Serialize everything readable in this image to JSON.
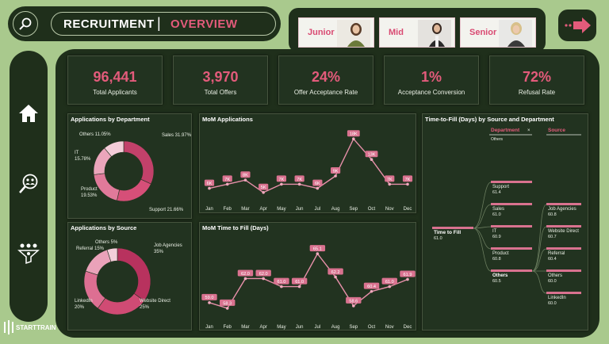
{
  "header": {
    "title": "RECRUITMENT",
    "separator": "|",
    "subtitle": "OVERVIEW"
  },
  "levels": [
    {
      "label": "Junior"
    },
    {
      "label": "Mid"
    },
    {
      "label": "Senior"
    }
  ],
  "brand": {
    "name": "STARTTRAIN"
  },
  "kpis": [
    {
      "value": "96,441",
      "label": "Total Applicants"
    },
    {
      "value": "3,970",
      "label": "Total Offers"
    },
    {
      "value": "24%",
      "label": "Offer Acceptance Rate"
    },
    {
      "value": "1%",
      "label": "Acceptance Conversion"
    },
    {
      "value": "72%",
      "label": "Refusal Rate"
    }
  ],
  "colors": {
    "accent": "#e35b7b",
    "panel": "#223320",
    "background": "#a9c98d",
    "frame": "#1f2f1b"
  },
  "chart_data": [
    {
      "type": "pie",
      "title": "Applications by Department",
      "categories": [
        "Sales",
        "Support",
        "Product",
        "IT",
        "Others"
      ],
      "values": [
        31.97,
        21.66,
        19.53,
        15.78,
        11.05
      ],
      "labels": [
        "Sales 31.97%",
        "Support 21.66%",
        "Product 19.53%",
        "IT 15.78%",
        "Others 11.05%"
      ]
    },
    {
      "type": "line",
      "title": "MoM Applications",
      "categories": [
        "Jan",
        "Feb",
        "Mar",
        "Apr",
        "May",
        "Jun",
        "Jul",
        "Aug",
        "Sep",
        "Oct",
        "Nov",
        "Dec"
      ],
      "values": [
        6,
        7,
        8,
        5,
        7,
        7,
        6,
        9,
        18,
        13,
        7,
        7
      ],
      "data_labels": [
        "6K",
        "7K",
        "8K",
        "5K",
        "7K",
        "7K",
        "6K",
        "9K",
        "18K",
        "13K",
        "7K",
        "7K"
      ]
    },
    {
      "type": "pie",
      "title": "Applications by Source",
      "categories": [
        "Job Agencies",
        "Website Direct",
        "LinkedIn",
        "Referral",
        "Others"
      ],
      "values": [
        35,
        25,
        20,
        15,
        5
      ],
      "labels": [
        "Job Agencies 35%",
        "Website Direct 25%",
        "LinkedIn 20%",
        "Referral 15%",
        "Others 5%"
      ]
    },
    {
      "type": "line",
      "title": "MoM Time to Fill (Days)",
      "categories": [
        "Jan",
        "Feb",
        "Mar",
        "Apr",
        "May",
        "Jun",
        "Jul",
        "Aug",
        "Sep",
        "Oct",
        "Nov",
        "Dec"
      ],
      "values": [
        59.0,
        58.3,
        62.0,
        62.0,
        61.0,
        61.0,
        65.1,
        62.2,
        58.6,
        60.4,
        61.0,
        61.9
      ],
      "data_labels": [
        "59.0",
        "58.3",
        "62.0",
        "62.0",
        "61.0",
        "61.0",
        "65.1",
        "62.2",
        "58.6",
        "60.4",
        "61.0",
        "61.9"
      ]
    },
    {
      "type": "table",
      "title": "Time-to-Fill (Days) by Source and Department",
      "root": {
        "label": "Time to Fill",
        "value": "61.0"
      },
      "department_header": "Department",
      "department_filter": "Others",
      "source_header": "Source",
      "departments": [
        {
          "name": "Support",
          "value": "61.4"
        },
        {
          "name": "Sales",
          "value": "61.0"
        },
        {
          "name": "IT",
          "value": "60.9"
        },
        {
          "name": "Product",
          "value": "60.8"
        },
        {
          "name": "Others",
          "value": "60.5"
        }
      ],
      "sources": [
        {
          "name": "Job Agencies",
          "value": "60.8"
        },
        {
          "name": "Website Direct",
          "value": "60.7"
        },
        {
          "name": "Referral",
          "value": "60.4"
        },
        {
          "name": "Others",
          "value": "60.0"
        },
        {
          "name": "LinkedIn",
          "value": "60.0"
        }
      ]
    }
  ]
}
